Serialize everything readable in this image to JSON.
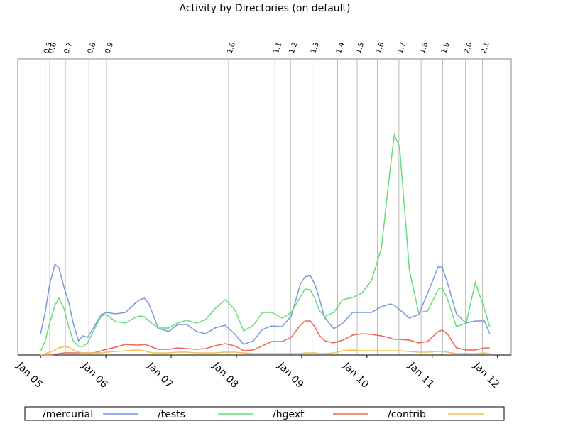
{
  "chart_data": {
    "type": "line",
    "title": "Activity by Directories (on default)",
    "x": [
      2005.0,
      2005.07,
      2005.14,
      2005.22,
      2005.28,
      2005.36,
      2005.43,
      2005.5,
      2005.58,
      2005.65,
      2005.72,
      2005.79,
      2005.87,
      2005.93,
      2006.01,
      2006.15,
      2006.3,
      2006.45,
      2006.52,
      2006.59,
      2006.66,
      2006.74,
      2006.8,
      2006.96,
      2007.1,
      2007.24,
      2007.39,
      2007.53,
      2007.67,
      2007.83,
      2007.97,
      2008.11,
      2008.26,
      2008.4,
      2008.54,
      2008.7,
      2008.84,
      2008.98,
      2009.05,
      2009.13,
      2009.2,
      2009.27,
      2009.35,
      2009.49,
      2009.63,
      2009.78,
      2009.92,
      2010.07,
      2010.22,
      2010.36,
      2010.42,
      2010.5,
      2010.65,
      2010.79,
      2010.93,
      2011.09,
      2011.15,
      2011.23,
      2011.37,
      2011.52,
      2011.66,
      2011.8,
      2011.88
    ],
    "series": [
      {
        "name": "/mercurial",
        "color": "#7799dd",
        "values": [
          30,
          60,
          100,
          128,
          123,
          95,
          75,
          45,
          20,
          27,
          25,
          35,
          48,
          57,
          60,
          58,
          60,
          73,
          78,
          80,
          72,
          53,
          38,
          33,
          43,
          43,
          33,
          30,
          38,
          42,
          30,
          15,
          20,
          36,
          41,
          40,
          55,
          100,
          110,
          112,
          100,
          80,
          53,
          37,
          45,
          60,
          60,
          60,
          68,
          72,
          70,
          64,
          52,
          57,
          87,
          124,
          124,
          103,
          58,
          45,
          48,
          48,
          30
        ]
      },
      {
        "name": "/tests",
        "color": "#66dd77",
        "values": [
          5,
          20,
          45,
          70,
          80,
          65,
          40,
          20,
          12,
          12,
          17,
          30,
          45,
          55,
          57,
          47,
          45,
          53,
          55,
          54,
          48,
          42,
          38,
          38,
          45,
          49,
          45,
          50,
          65,
          78,
          65,
          34,
          42,
          60,
          60,
          52,
          60,
          82,
          93,
          92,
          80,
          63,
          54,
          60,
          78,
          81,
          87,
          105,
          150,
          265,
          310,
          293,
          120,
          60,
          62,
          92,
          95,
          80,
          40,
          45,
          102,
          65,
          40
        ]
      },
      {
        "name": "/hgext",
        "color": "#ee6655",
        "values": [
          0,
          0,
          0,
          1,
          2,
          3,
          3,
          3,
          3,
          3,
          3,
          3,
          4,
          6,
          8,
          11,
          15,
          14,
          14,
          15,
          13,
          10,
          8,
          8,
          10,
          9,
          8,
          9,
          13,
          16,
          13,
          6,
          7,
          13,
          19,
          19,
          25,
          42,
          48,
          48,
          40,
          28,
          20,
          17,
          21,
          28,
          30,
          29,
          27,
          24,
          22,
          22,
          21,
          17,
          19,
          33,
          35,
          30,
          10,
          7,
          7,
          10,
          10
        ]
      },
      {
        "name": "/contrib",
        "color": "#f0c050",
        "values": [
          0,
          2,
          4,
          7,
          10,
          12,
          11,
          7,
          4,
          3,
          3,
          3,
          3,
          3,
          4,
          5,
          6,
          7,
          7,
          6,
          4,
          3,
          3,
          3,
          4,
          4,
          3,
          3,
          3,
          4,
          4,
          3,
          2,
          2,
          2,
          2,
          2,
          2,
          3,
          3,
          3,
          2,
          2,
          3,
          6,
          7,
          6,
          6,
          6,
          6,
          6,
          6,
          5,
          4,
          4,
          5,
          5,
          4,
          2,
          2,
          2,
          3,
          2
        ]
      }
    ],
    "xlim": [
      2004.65,
      2012.21
    ],
    "ylim": [
      0,
      417
    ],
    "xticks": [
      {
        "value": 2005,
        "label": "Jan 05"
      },
      {
        "value": 2006,
        "label": "Jan 06"
      },
      {
        "value": 2007,
        "label": "Jan 07"
      },
      {
        "value": 2008,
        "label": "Jan 08"
      },
      {
        "value": 2009,
        "label": "Jan 09"
      },
      {
        "value": 2010,
        "label": "Jan 10"
      },
      {
        "value": 2011,
        "label": "Jan 11"
      },
      {
        "value": 2012,
        "label": "Jan 12"
      }
    ],
    "annotations": [
      {
        "label": "0.5",
        "x": 2005.07
      },
      {
        "label": "0.6",
        "x": 2005.14
      },
      {
        "label": "0.7",
        "x": 2005.38
      },
      {
        "label": "0.8",
        "x": 2005.74
      },
      {
        "label": "0.9",
        "x": 2006.01
      },
      {
        "label": "1.0",
        "x": 2007.88
      },
      {
        "label": "1.1",
        "x": 2008.59
      },
      {
        "label": "1.2",
        "x": 2008.83
      },
      {
        "label": "1.3",
        "x": 2009.16
      },
      {
        "label": "1.4",
        "x": 2009.55
      },
      {
        "label": "1.5",
        "x": 2009.85
      },
      {
        "label": "1.6",
        "x": 2010.16
      },
      {
        "label": "1.7",
        "x": 2010.49
      },
      {
        "label": "1.8",
        "x": 2010.83
      },
      {
        "label": "1.9",
        "x": 2011.16
      },
      {
        "label": "2.0",
        "x": 2011.51
      },
      {
        "label": "2.1",
        "x": 2011.77
      }
    ],
    "legend": "bottom"
  }
}
